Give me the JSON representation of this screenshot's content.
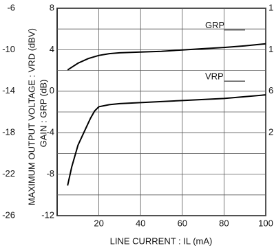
{
  "chart_data": {
    "type": "line",
    "x_label": "LINE CURRENT : IL (mA)",
    "y_label": "GAIN : GRP (dB)",
    "y2_label": "MAXIMUM OUTPUT VOLTAGE : VRD (dBV)",
    "xlim": [
      0,
      100
    ],
    "xticks": [
      20,
      40,
      60,
      80,
      100
    ],
    "ylim": [
      -12,
      8
    ],
    "yticks": [
      8,
      4,
      0,
      -4,
      -8,
      -12
    ],
    "y2lim": [
      -26,
      -6
    ],
    "y2ticks": [
      -6,
      -10,
      -14,
      -18,
      -22,
      -26
    ],
    "right_axis_labels": [
      "1",
      "1",
      "6",
      "2"
    ],
    "grid": true,
    "series": [
      {
        "name": "GRP",
        "color": "#000000",
        "x": [
          5,
          10,
          15,
          20,
          25,
          30,
          40,
          50,
          60,
          70,
          80,
          90,
          100
        ],
        "values": [
          2.05,
          2.7,
          3.15,
          3.45,
          3.62,
          3.7,
          3.78,
          3.85,
          3.98,
          4.1,
          4.22,
          4.38,
          4.57
        ]
      },
      {
        "name": "VRP",
        "color": "#000000",
        "axis": "y2",
        "x": [
          5,
          7,
          10,
          13,
          16,
          18,
          20,
          25,
          30,
          40,
          60,
          80,
          100
        ],
        "values": [
          -23.1,
          -21.3,
          -19.2,
          -17.9,
          -16.6,
          -15.9,
          -15.5,
          -15.3,
          -15.2,
          -15.1,
          -14.9,
          -14.7,
          -14.35
        ]
      }
    ]
  }
}
